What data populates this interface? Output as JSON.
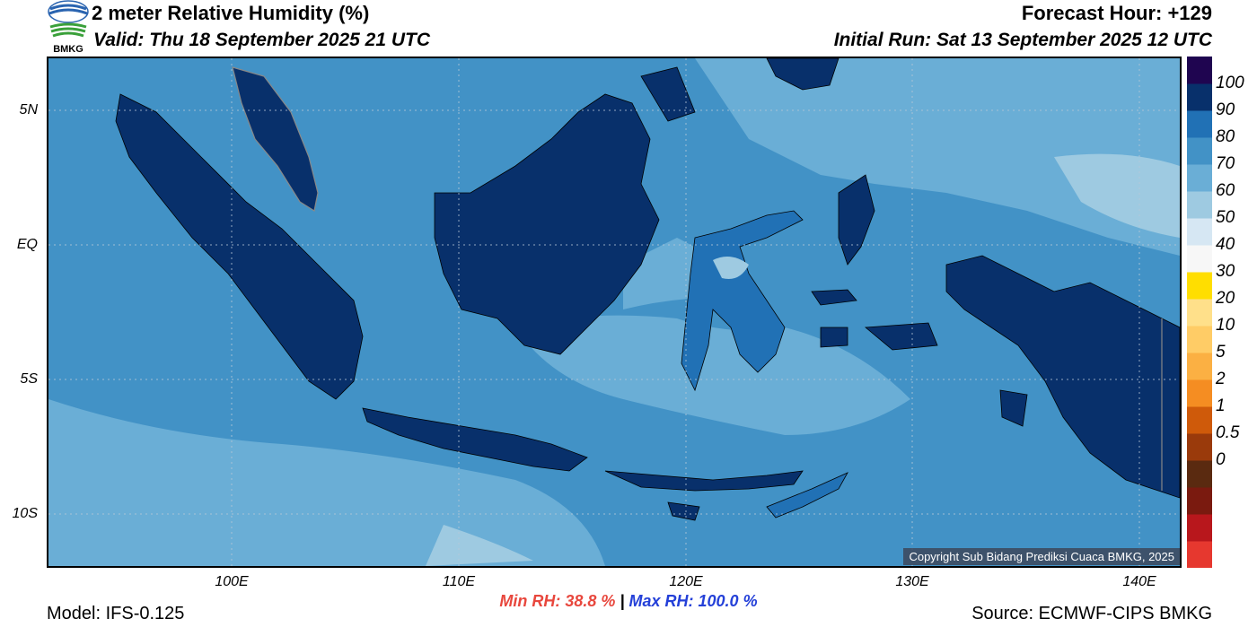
{
  "header": {
    "title": "2 meter Relative Humidity (%)",
    "valid": "Valid: Thu 18 September 2025 21 UTC",
    "forecast_hour": "Forecast Hour: +129",
    "initial_run": "Initial Run: Sat 13 September 2025 12 UTC",
    "logo_text": "BMKG"
  },
  "axes": {
    "lat_labels": [
      "5N",
      "EQ",
      "5S",
      "10S"
    ],
    "lon_labels": [
      "100E",
      "110E",
      "120E",
      "130E",
      "140E"
    ]
  },
  "colorbar": {
    "labels": [
      "100",
      "90",
      "80",
      "70",
      "60",
      "50",
      "40",
      "30",
      "20",
      "10",
      "5",
      "2",
      "1",
      "0.5",
      "0"
    ],
    "colors": [
      "#e6382f",
      "#b8171c",
      "#7a1a0f",
      "#5a2a10",
      "#9a3a0b",
      "#cf5a0a",
      "#f58d22",
      "#fbb043",
      "#ffcc66",
      "#ffe08a",
      "#ffde00",
      "#f7f7f7",
      "#d6e7f3",
      "#9ecae1",
      "#6aaed6",
      "#4292c6",
      "#2171b5",
      "#08306b",
      "#1f0550"
    ],
    "colors_note": "bottom-to-top"
  },
  "stats": {
    "min_rh": "Min RH:  38.8 %",
    "separator": "|",
    "max_rh": "Max RH: 100.0 %"
  },
  "footer": {
    "model": "Model: IFS-0.125",
    "source": "Source: ECMWF-CIPS BMKG",
    "copyright": "Copyright Sub Bidang Prediksi Cuaca BMKG, 2025"
  },
  "palette": {
    "ocean": "#4292c6",
    "ocean_light": "#6aaed6",
    "ocean_pale": "#9ecae1",
    "land": "#08306b",
    "land_mid": "#2171b5"
  }
}
